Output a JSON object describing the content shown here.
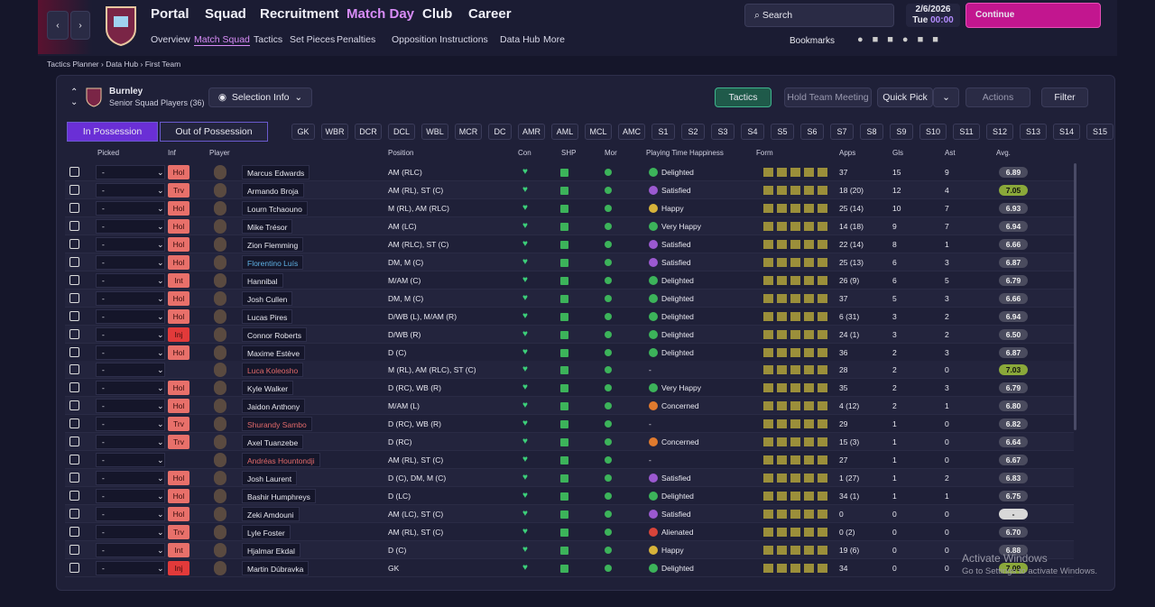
{
  "nav": {
    "menus": [
      "Portal",
      "Squad",
      "Recruitment",
      "Match Day",
      "Club",
      "Career"
    ],
    "subnav": [
      "Overview",
      "Match Squad",
      "Tactics",
      "Set Pieces",
      "Penalties",
      "Opposition Instructions",
      "Data Hub",
      "More"
    ],
    "search": "Search",
    "date": "2/6/2026",
    "day": "Tue",
    "time": "00:00",
    "continue": "Continue",
    "bookmarks": "Bookmarks"
  },
  "breadcrumb": [
    "Tactics Planner",
    "Data Hub",
    "First Team"
  ],
  "team": {
    "name": "Burnley",
    "subtitle": "Senior Squad Players (36)",
    "selection_info": "Selection Info"
  },
  "actions": {
    "tactics": "Tactics",
    "meeting": "Hold Team Meeting",
    "quick_pick": "Quick Pick",
    "actions": "Actions",
    "filter": "Filter"
  },
  "tabs": [
    "In Possession",
    "Out of Possession"
  ],
  "positions": [
    "GK",
    "WBR",
    "DCR",
    "DCL",
    "WBL",
    "MCR",
    "DC",
    "AMR",
    "AML",
    "MCL",
    "AMC",
    "S1",
    "S2",
    "S3",
    "S4",
    "S5",
    "S6",
    "S7",
    "S8",
    "S9",
    "S10",
    "S11",
    "S12",
    "S13",
    "S14",
    "S15"
  ],
  "table": {
    "columns": [
      "Picked",
      "Inf",
      "Player",
      "Position",
      "Con",
      "SHP",
      "Mor",
      "Playing Time Happiness",
      "Form",
      "Apps",
      "Gls",
      "Ast",
      "Avg."
    ],
    "rows": [
      {
        "picked": "-",
        "inf": "Hol",
        "name": "Marcus Edwards",
        "position": "AM (RLC)",
        "happiness": "Delighted",
        "mood_color": "#3cb35a",
        "apps": "37",
        "gls": 15,
        "ast": 9,
        "avg": "6.89"
      },
      {
        "picked": "-",
        "inf": "Trv",
        "name": "Armando Broja",
        "position": "AM (RL), ST (C)",
        "happiness": "Satisfied",
        "mood_color": "#9b59d0",
        "apps": "18 (20)",
        "gls": 12,
        "ast": 4,
        "avg": "7.05",
        "avg_color": "#8aa83a"
      },
      {
        "picked": "-",
        "inf": "Hol",
        "name": "Lourn Tchaouno",
        "position": "M (RL), AM (RLC)",
        "happiness": "Happy",
        "mood_color": "#d7b33a",
        "apps": "25 (14)",
        "gls": 10,
        "ast": 7,
        "avg": "6.93"
      },
      {
        "picked": "-",
        "inf": "Hol",
        "name": "Mike Trésor",
        "position": "AM (LC)",
        "happiness": "Very Happy",
        "mood_color": "#3cb35a",
        "apps": "14 (18)",
        "gls": 9,
        "ast": 7,
        "avg": "6.94"
      },
      {
        "picked": "-",
        "inf": "Hol",
        "name": "Zion Flemming",
        "position": "AM (RLC), ST (C)",
        "happiness": "Satisfied",
        "mood_color": "#9b59d0",
        "apps": "22 (14)",
        "gls": 8,
        "ast": 1,
        "avg": "6.66"
      },
      {
        "picked": "-",
        "inf": "Hol",
        "name": "Florentino Luís",
        "name_color": "#5fb2e6",
        "position": "DM, M (C)",
        "happiness": "Satisfied",
        "mood_color": "#9b59d0",
        "apps": "25 (13)",
        "gls": 6,
        "ast": 3,
        "avg": "6.87"
      },
      {
        "picked": "-",
        "inf": "Int",
        "name": "Hannibal",
        "position": "M/AM (C)",
        "happiness": "Delighted",
        "mood_color": "#3cb35a",
        "apps": "26 (9)",
        "gls": 6,
        "ast": 5,
        "avg": "6.79"
      },
      {
        "picked": "-",
        "inf": "Hol",
        "name": "Josh Cullen",
        "position": "DM, M (C)",
        "happiness": "Delighted",
        "mood_color": "#3cb35a",
        "apps": "37",
        "gls": 5,
        "ast": 3,
        "avg": "6.66"
      },
      {
        "picked": "-",
        "inf": "Hol",
        "name": "Lucas Pires",
        "position": "D/WB (L), M/AM (R)",
        "happiness": "Delighted",
        "mood_color": "#3cb35a",
        "apps": "6 (31)",
        "gls": 3,
        "ast": 2,
        "avg": "6.94"
      },
      {
        "picked": "-",
        "inf": "Inj",
        "name": "Connor Roberts",
        "position": "D/WB (R)",
        "happiness": "Delighted",
        "mood_color": "#3cb35a",
        "apps": "24 (1)",
        "gls": 3,
        "ast": 2,
        "avg": "6.50"
      },
      {
        "picked": "-",
        "inf": "Hol",
        "name": "Maxime Estève",
        "position": "D (C)",
        "happiness": "Delighted",
        "mood_color": "#3cb35a",
        "apps": "36",
        "gls": 2,
        "ast": 3,
        "avg": "6.87"
      },
      {
        "picked": "-",
        "name": "Luca Koleosho",
        "name_color": "#e26a6a",
        "position": "M (RL), AM (RLC), ST (C)",
        "happiness": "-",
        "apps": "28",
        "gls": 2,
        "ast": 0,
        "avg": "7.03",
        "avg_color": "#8aa83a"
      },
      {
        "picked": "-",
        "inf": "Hol",
        "name": "Kyle Walker",
        "position": "D (RC), WB (R)",
        "happiness": "Very Happy",
        "mood_color": "#3cb35a",
        "apps": "35",
        "gls": 2,
        "ast": 3,
        "avg": "6.79"
      },
      {
        "picked": "-",
        "inf": "Hol",
        "name": "Jaidon Anthony",
        "position": "M/AM (L)",
        "happiness": "Concerned",
        "mood_color": "#e07a2e",
        "apps": "4 (12)",
        "gls": 2,
        "ast": 1,
        "avg": "6.80"
      },
      {
        "picked": "-",
        "inf": "Trv",
        "name": "Shurandy Sambo",
        "name_color": "#e26a6a",
        "position": "D (RC), WB (R)",
        "happiness": "-",
        "apps": "29",
        "gls": 1,
        "ast": 0,
        "avg": "6.82"
      },
      {
        "picked": "-",
        "inf": "Trv",
        "name": "Axel Tuanzebe",
        "position": "D (RC)",
        "happiness": "Concerned",
        "mood_color": "#e07a2e",
        "apps": "15 (3)",
        "gls": 1,
        "ast": 0,
        "avg": "6.64"
      },
      {
        "picked": "-",
        "name": "Andréas Hountondji",
        "name_color": "#e26a6a",
        "position": "AM (RL), ST (C)",
        "happiness": "-",
        "apps": "27",
        "gls": 1,
        "ast": 0,
        "avg": "6.67"
      },
      {
        "picked": "-",
        "inf": "Hol",
        "name": "Josh Laurent",
        "position": "D (C), DM, M (C)",
        "happiness": "Satisfied",
        "mood_color": "#9b59d0",
        "apps": "1 (27)",
        "gls": 1,
        "ast": 2,
        "avg": "6.83"
      },
      {
        "picked": "-",
        "inf": "Hol",
        "name": "Bashir Humphreys",
        "position": "D (LC)",
        "happiness": "Delighted",
        "mood_color": "#3cb35a",
        "apps": "34 (1)",
        "gls": 1,
        "ast": 1,
        "avg": "6.75"
      },
      {
        "picked": "-",
        "inf": "Hol",
        "name": "Zeki Amdouni",
        "position": "AM (LC), ST (C)",
        "happiness": "Satisfied",
        "mood_color": "#9b59d0",
        "apps": "0",
        "gls": 0,
        "ast": 0,
        "avg": "-",
        "avg_color": "#d8d8d8"
      },
      {
        "picked": "-",
        "inf": "Trv",
        "name": "Lyle Foster",
        "position": "AM (RL), ST (C)",
        "happiness": "Alienated",
        "mood_color": "#d8443a",
        "apps": "0 (2)",
        "gls": 0,
        "ast": 0,
        "avg": "6.70"
      },
      {
        "picked": "-",
        "inf": "Int",
        "name": "Hjalmar Ekdal",
        "position": "D (C)",
        "happiness": "Happy",
        "mood_color": "#d7b33a",
        "apps": "19 (6)",
        "gls": 0,
        "ast": 0,
        "avg": "6.88"
      },
      {
        "picked": "-",
        "inf": "Inj",
        "name": "Martin Dúbravka",
        "position": "GK",
        "happiness": "Delighted",
        "mood_color": "#3cb35a",
        "apps": "34",
        "gls": 0,
        "ast": 0,
        "avg": "7.09",
        "avg_color": "#8aa83a"
      }
    ]
  },
  "watermark": {
    "title": "Activate Windows",
    "text": "Go to Settings to activate Windows."
  }
}
